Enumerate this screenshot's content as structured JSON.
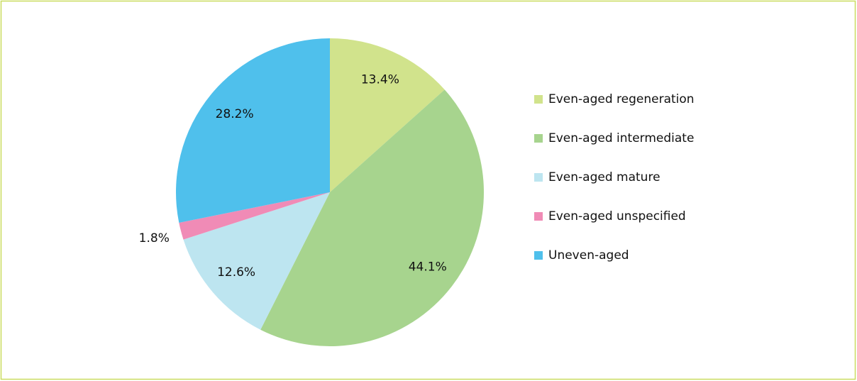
{
  "chart_data": {
    "type": "pie",
    "categories": [
      "Even-aged regeneration",
      "Even-aged intermediate",
      "Even-aged mature",
      "Even-aged unspecified",
      "Uneven-aged"
    ],
    "values": [
      13.4,
      44.1,
      12.6,
      1.8,
      28.2
    ],
    "value_labels": [
      "13.4%",
      "44.1%",
      "12.6%",
      "1.8%",
      "28.2%"
    ],
    "colors": [
      "#d1e38c",
      "#a7d48e",
      "#bde5f0",
      "#f08bb6",
      "#4fc0ec"
    ],
    "legend": "right"
  }
}
